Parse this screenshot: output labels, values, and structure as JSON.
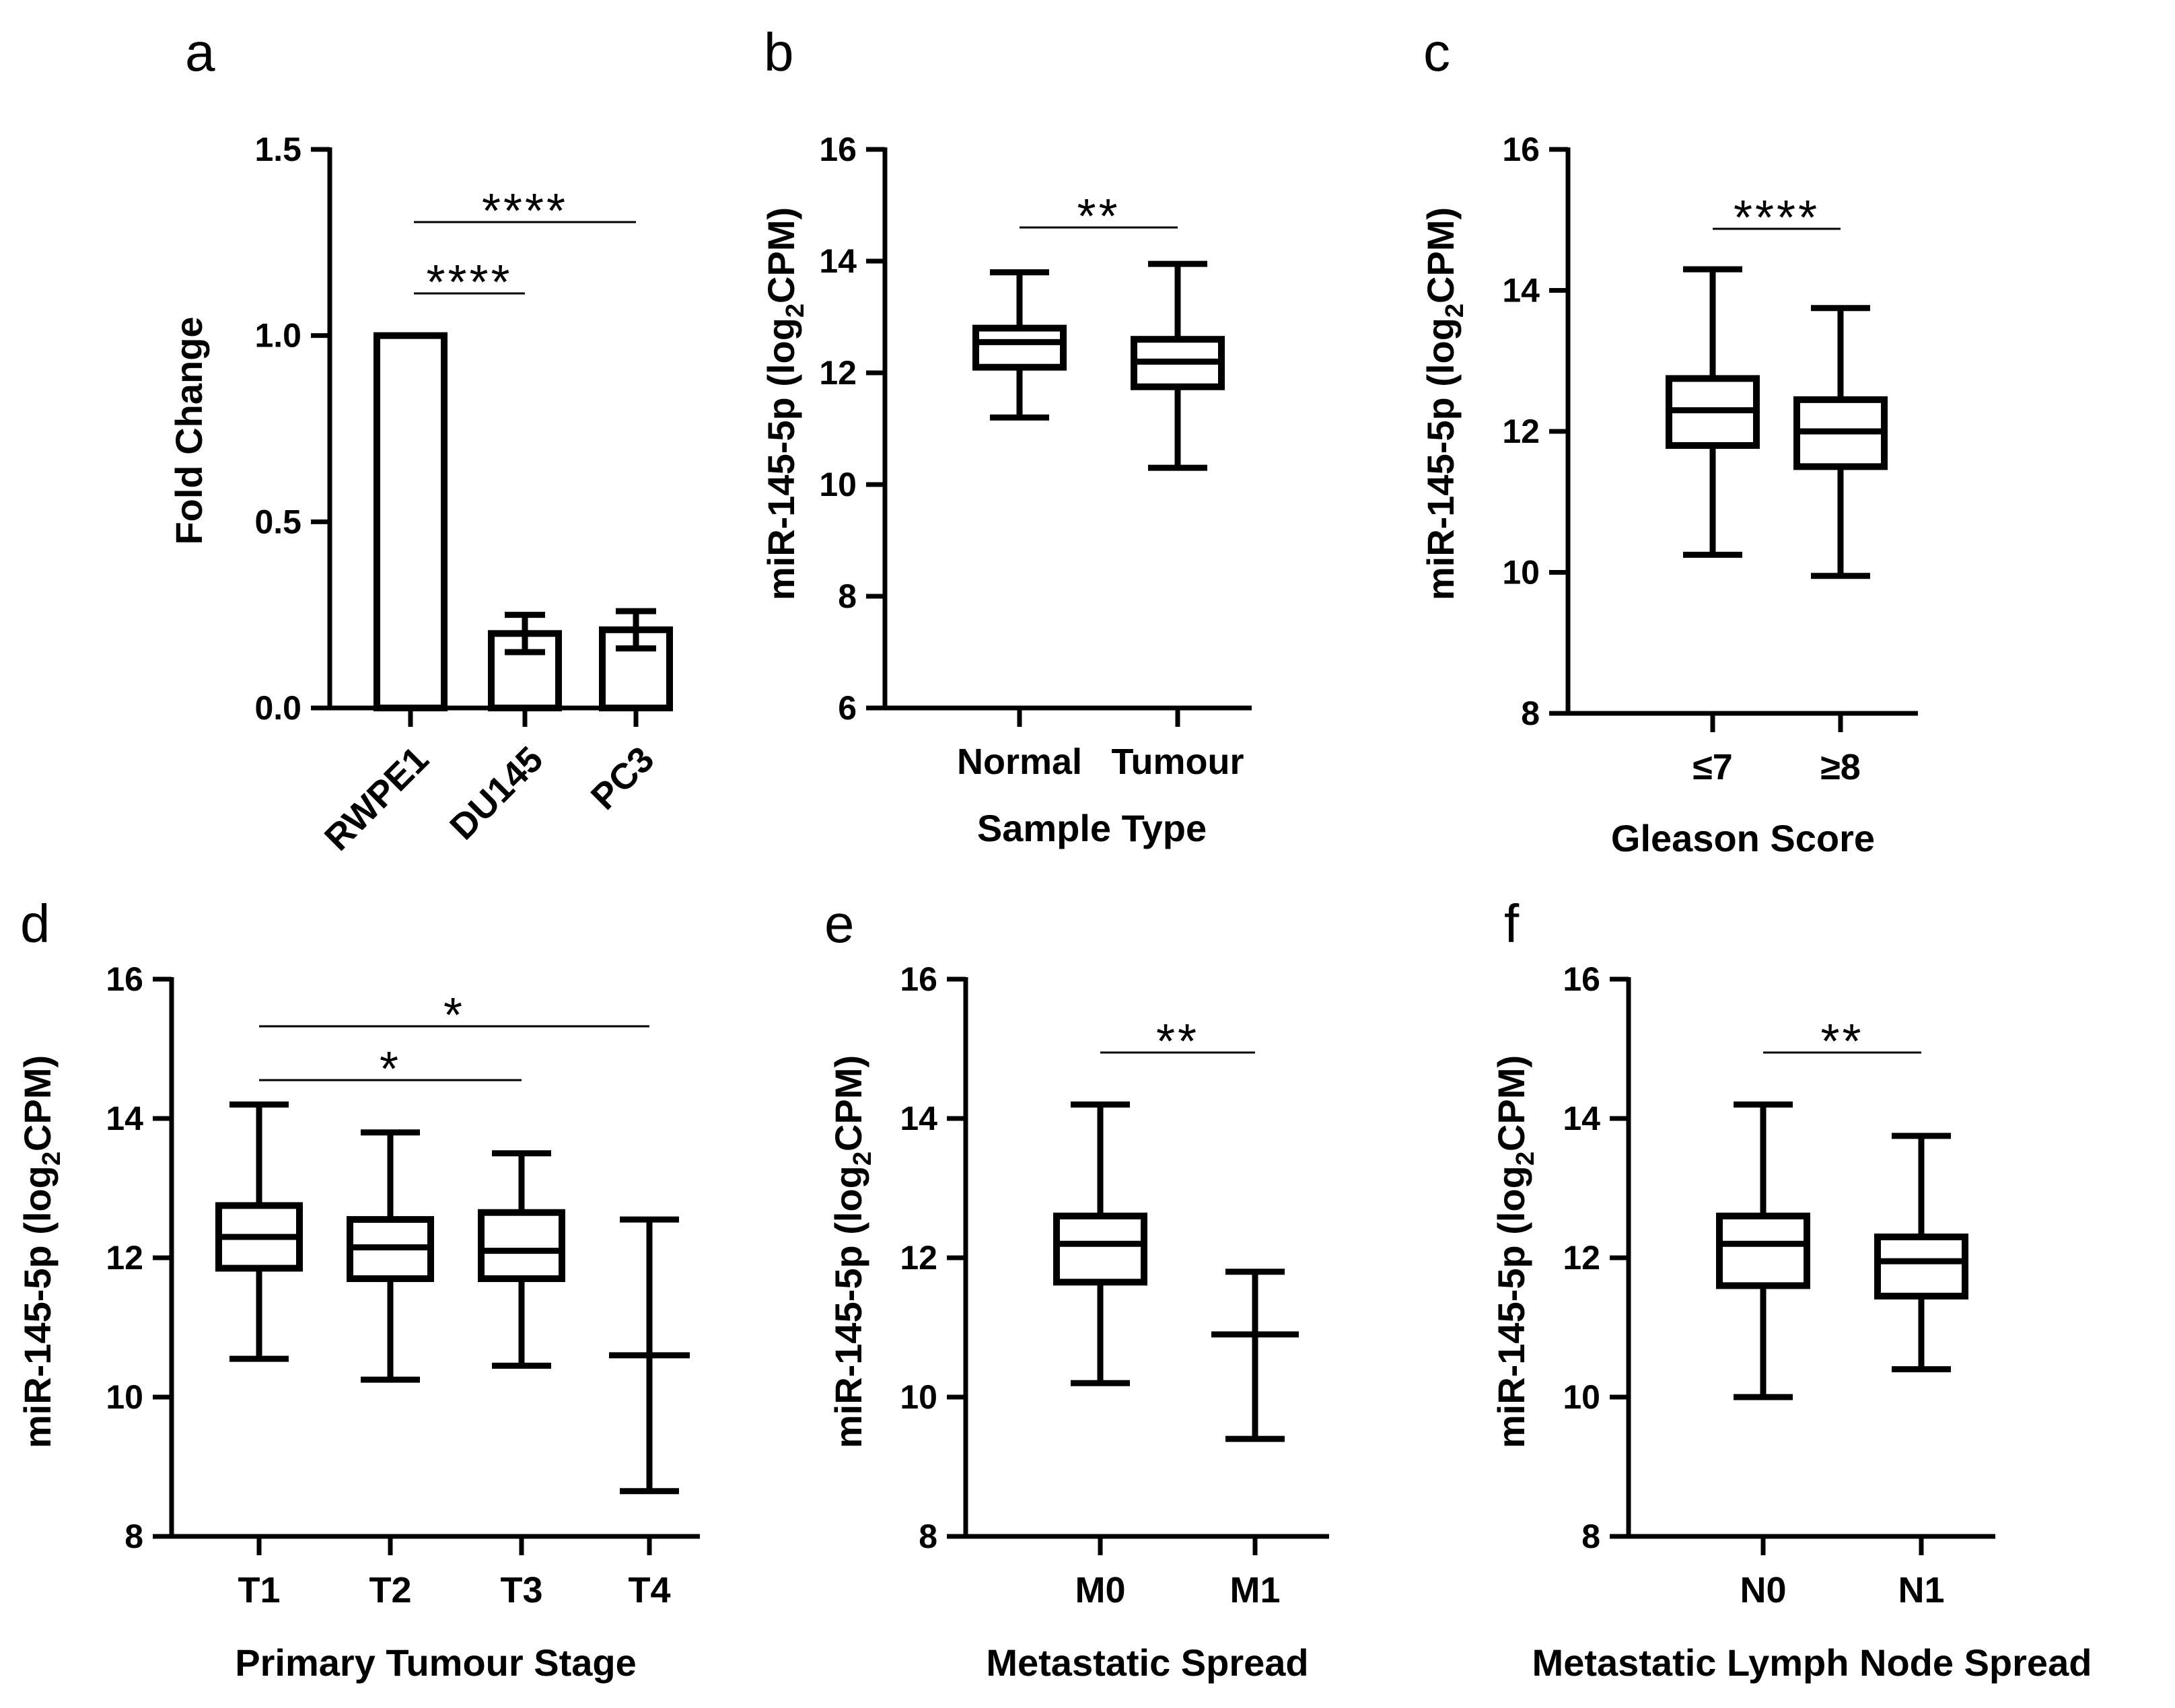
{
  "chart_data": [
    {
      "id": "a",
      "letter": "a",
      "type": "bar",
      "ylabel": "Fold Change",
      "xlabel": "",
      "ylim": [
        0,
        1.5
      ],
      "yticks": [
        0.0,
        0.5,
        1.0,
        1.5
      ],
      "ytick_labels": [
        "0.0",
        "0.5",
        "1.0",
        "1.5"
      ],
      "decimals": 1,
      "categories": [
        "RWPE1",
        "DU145",
        "PC3"
      ],
      "values": [
        1.0,
        0.2,
        0.21
      ],
      "errors": [
        0.0,
        0.05,
        0.05
      ],
      "significance": [
        {
          "from": 0,
          "to": 1,
          "label": "****"
        },
        {
          "from": 0,
          "to": 2,
          "label": "****"
        }
      ]
    },
    {
      "id": "b",
      "letter": "b",
      "type": "box",
      "ylabel": "miR-145-5p (log2CPM)",
      "xlabel": "Sample Type",
      "ylim": [
        6,
        16
      ],
      "yticks": [
        6,
        8,
        10,
        12,
        14,
        16
      ],
      "ytick_labels": [
        "6",
        "8",
        "10",
        "12",
        "14",
        "16"
      ],
      "categories": [
        "Normal",
        "Tumour"
      ],
      "boxes": [
        {
          "min": 11.2,
          "q1": 12.1,
          "median": 12.55,
          "q3": 12.8,
          "max": 13.8
        },
        {
          "min": 10.3,
          "q1": 11.75,
          "median": 12.2,
          "q3": 12.6,
          "max": 13.95
        }
      ],
      "significance": [
        {
          "from": 0,
          "to": 1,
          "label": "**"
        }
      ]
    },
    {
      "id": "c",
      "letter": "c",
      "type": "box",
      "ylabel": "miR-145-5p (log2CPM)",
      "xlabel": "Gleason Score",
      "ylim": [
        8,
        16
      ],
      "yticks": [
        8,
        10,
        12,
        14,
        16
      ],
      "ytick_labels": [
        "8",
        "10",
        "12",
        "14",
        "16"
      ],
      "categories": [
        "≤7",
        "≥8"
      ],
      "boxes": [
        {
          "min": 10.25,
          "q1": 11.8,
          "median": 12.3,
          "q3": 12.75,
          "max": 14.3
        },
        {
          "min": 9.95,
          "q1": 11.5,
          "median": 12.0,
          "q3": 12.45,
          "max": 13.75
        }
      ],
      "significance": [
        {
          "from": 0,
          "to": 1,
          "label": "****"
        }
      ]
    },
    {
      "id": "d",
      "letter": "d",
      "type": "box",
      "ylabel": "miR-145-5p (log2CPM)",
      "xlabel": "Primary Tumour Stage",
      "ylim": [
        8,
        16
      ],
      "yticks": [
        8,
        10,
        12,
        14,
        16
      ],
      "ytick_labels": [
        "8",
        "10",
        "12",
        "14",
        "16"
      ],
      "categories": [
        "T1",
        "T2",
        "T3",
        "T4"
      ],
      "boxes": [
        {
          "min": 10.55,
          "q1": 11.85,
          "median": 12.3,
          "q3": 12.75,
          "max": 14.2
        },
        {
          "min": 10.25,
          "q1": 11.7,
          "median": 12.15,
          "q3": 12.55,
          "max": 13.8
        },
        {
          "min": 10.45,
          "q1": 11.7,
          "median": 12.1,
          "q3": 12.65,
          "max": 13.5
        },
        {
          "min": 8.65,
          "q1": 10.6,
          "median": 10.6,
          "q3": 10.6,
          "max": 12.55
        }
      ],
      "significance": [
        {
          "from": 0,
          "to": 2,
          "label": "*"
        },
        {
          "from": 0,
          "to": 3,
          "label": "*"
        }
      ]
    },
    {
      "id": "e",
      "letter": "e",
      "type": "box",
      "ylabel": "miR-145-5p (log2CPM)",
      "xlabel": "Metastatic Spread",
      "ylim": [
        8,
        16
      ],
      "yticks": [
        8,
        10,
        12,
        14,
        16
      ],
      "ytick_labels": [
        "8",
        "10",
        "12",
        "14",
        "16"
      ],
      "categories": [
        "M0",
        "M1"
      ],
      "boxes": [
        {
          "min": 10.2,
          "q1": 11.65,
          "median": 12.2,
          "q3": 12.6,
          "max": 14.2
        },
        {
          "min": 9.4,
          "q1": 10.9,
          "median": 10.9,
          "q3": 10.9,
          "max": 11.8
        }
      ],
      "significance": [
        {
          "from": 0,
          "to": 1,
          "label": "**"
        }
      ]
    },
    {
      "id": "f",
      "letter": "f",
      "type": "box",
      "ylabel": "miR-145-5p (log2CPM)",
      "xlabel": "Metastatic Lymph Node Spread",
      "ylim": [
        8,
        16
      ],
      "yticks": [
        8,
        10,
        12,
        14,
        16
      ],
      "ytick_labels": [
        "8",
        "10",
        "12",
        "14",
        "16"
      ],
      "categories": [
        "N0",
        "N1"
      ],
      "boxes": [
        {
          "min": 10.0,
          "q1": 11.6,
          "median": 12.2,
          "q3": 12.6,
          "max": 14.2
        },
        {
          "min": 10.4,
          "q1": 11.45,
          "median": 11.95,
          "q3": 12.3,
          "max": 13.75
        }
      ],
      "significance": [
        {
          "from": 0,
          "to": 1,
          "label": "**"
        }
      ]
    }
  ]
}
